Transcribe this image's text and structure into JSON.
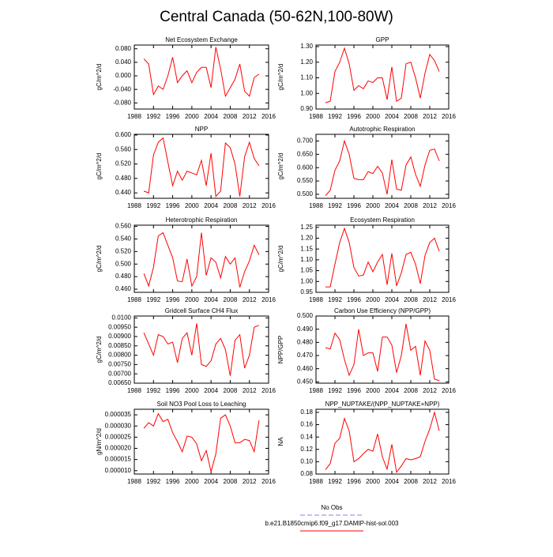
{
  "title": "Central Canada (50-62N,100-80W)",
  "legend": [
    {
      "name": "No Obs",
      "color": "#8080ee",
      "dash": true
    },
    {
      "name": "b.e21.B1850cmip6.f09_g17.DAMIP-hist-sol.003",
      "color": "#ff0000",
      "dash": false
    }
  ],
  "chart_data": [
    {
      "type": "line",
      "title": "Net Ecosystem Exchange",
      "ylabel": "gC/m^2/d",
      "color": "#ff0000",
      "xlim": [
        1988,
        2016
      ],
      "xticks": [
        1988,
        1992,
        1996,
        2000,
        2004,
        2008,
        2012,
        2016
      ],
      "x": [
        1990,
        1991,
        1992,
        1993,
        1994,
        1995,
        1996,
        1997,
        1998,
        1999,
        2000,
        2001,
        2002,
        2003,
        2004,
        2005,
        2006,
        2007,
        2008,
        2009,
        2010,
        2011,
        2012,
        2013,
        2014
      ],
      "values": [
        0.05,
        0.035,
        -0.055,
        -0.03,
        -0.04,
        0.0,
        0.055,
        -0.02,
        0.0,
        0.015,
        -0.02,
        0.01,
        0.025,
        0.025,
        -0.035,
        0.085,
        0.02,
        -0.06,
        -0.035,
        -0.01,
        0.035,
        -0.045,
        -0.06,
        -0.005,
        0.005
      ],
      "ylim": [
        -0.098,
        0.091
      ],
      "yticks": [
        {
          "value": -0.08,
          "label": "-0.080"
        },
        {
          "value": -0.04,
          "label": "-0.040"
        },
        {
          "value": 0,
          "label": "0.000"
        },
        {
          "value": 0.04,
          "label": "0.040"
        },
        {
          "value": 0.08,
          "label": "0.080"
        }
      ]
    },
    {
      "type": "line",
      "title": "GPP",
      "ylabel": "gC/m^2/d",
      "color": "#ff0000",
      "xlim": [
        1988,
        2016
      ],
      "xticks": [
        1988,
        1992,
        1996,
        2000,
        2004,
        2008,
        2012,
        2016
      ],
      "x": [
        1990,
        1991,
        1992,
        1993,
        1994,
        1995,
        1996,
        1997,
        1998,
        1999,
        2000,
        2001,
        2002,
        2003,
        2004,
        2005,
        2006,
        2007,
        2008,
        2009,
        2010,
        2011,
        2012,
        2013,
        2014
      ],
      "values": [
        0.94,
        0.95,
        1.14,
        1.2,
        1.29,
        1.19,
        1.02,
        1.05,
        1.03,
        1.08,
        1.07,
        1.1,
        1.1,
        0.96,
        1.17,
        0.95,
        0.97,
        1.19,
        1.2,
        1.1,
        0.97,
        1.13,
        1.25,
        1.21,
        1.14
      ],
      "ylim": [
        0.9,
        1.31
      ],
      "yticks": [
        {
          "value": 0.9,
          "label": "0.90"
        },
        {
          "value": 1.0,
          "label": "1.00"
        },
        {
          "value": 1.1,
          "label": "1.10"
        },
        {
          "value": 1.2,
          "label": "1.20"
        },
        {
          "value": 1.3,
          "label": "1.30"
        }
      ]
    },
    {
      "type": "line",
      "title": "NPP",
      "ylabel": "gC/m^2/d",
      "color": "#ff0000",
      "xlim": [
        1988,
        2016
      ],
      "xticks": [
        1988,
        1992,
        1996,
        2000,
        2004,
        2008,
        2012,
        2016
      ],
      "x": [
        1990,
        1991,
        1992,
        1993,
        1994,
        1995,
        1996,
        1997,
        1998,
        1999,
        2000,
        2001,
        2002,
        2003,
        2004,
        2005,
        2006,
        2007,
        2008,
        2009,
        2010,
        2011,
        2012,
        2013,
        2014
      ],
      "values": [
        0.445,
        0.44,
        0.545,
        0.58,
        0.592,
        0.525,
        0.46,
        0.5,
        0.475,
        0.5,
        0.495,
        0.49,
        0.53,
        0.46,
        0.55,
        0.43,
        0.445,
        0.578,
        0.565,
        0.52,
        0.43,
        0.54,
        0.58,
        0.535,
        0.515
      ],
      "ylim": [
        0.425,
        0.602
      ],
      "yticks": [
        {
          "value": 0.44,
          "label": "0.440"
        },
        {
          "value": 0.48,
          "label": "0.480"
        },
        {
          "value": 0.52,
          "label": "0.520"
        },
        {
          "value": 0.56,
          "label": "0.560"
        },
        {
          "value": 0.6,
          "label": "0.600"
        }
      ]
    },
    {
      "type": "line",
      "title": "Autotrophic Respiration",
      "ylabel": "gC/m^2/d",
      "color": "#ff0000",
      "xlim": [
        1988,
        2016
      ],
      "xticks": [
        1988,
        1992,
        1996,
        2000,
        2004,
        2008,
        2012,
        2016
      ],
      "x": [
        1990,
        1991,
        1992,
        1993,
        1994,
        1995,
        1996,
        1997,
        1998,
        1999,
        2000,
        2001,
        2002,
        2003,
        2004,
        2005,
        2006,
        2007,
        2008,
        2009,
        2010,
        2011,
        2012,
        2013,
        2014
      ],
      "values": [
        0.495,
        0.515,
        0.59,
        0.625,
        0.7,
        0.65,
        0.56,
        0.555,
        0.555,
        0.585,
        0.578,
        0.605,
        0.58,
        0.5,
        0.63,
        0.52,
        0.515,
        0.61,
        0.64,
        0.575,
        0.53,
        0.61,
        0.665,
        0.67,
        0.625
      ],
      "ylim": [
        0.485,
        0.725
      ],
      "yticks": [
        {
          "value": 0.5,
          "label": "0.500"
        },
        {
          "value": 0.55,
          "label": "0.550"
        },
        {
          "value": 0.6,
          "label": "0.600"
        },
        {
          "value": 0.65,
          "label": "0.650"
        },
        {
          "value": 0.7,
          "label": "0.700"
        }
      ]
    },
    {
      "type": "line",
      "title": "Heterotrophic Respiration",
      "ylabel": "gC/m^2/d",
      "color": "#ff0000",
      "xlim": [
        1988,
        2016
      ],
      "xticks": [
        1988,
        1992,
        1996,
        2000,
        2004,
        2008,
        2012,
        2016
      ],
      "x": [
        1990,
        1991,
        1992,
        1993,
        1994,
        1995,
        1996,
        1997,
        1998,
        1999,
        2000,
        2001,
        2002,
        2003,
        2004,
        2005,
        2006,
        2007,
        2008,
        2009,
        2010,
        2011,
        2012,
        2013,
        2014
      ],
      "values": [
        0.485,
        0.465,
        0.495,
        0.545,
        0.55,
        0.53,
        0.51,
        0.473,
        0.472,
        0.508,
        0.465,
        0.48,
        0.55,
        0.482,
        0.51,
        0.503,
        0.478,
        0.512,
        0.5,
        0.51,
        0.463,
        0.488,
        0.505,
        0.53,
        0.515
      ],
      "ylim": [
        0.455,
        0.562
      ],
      "yticks": [
        {
          "value": 0.46,
          "label": "0.460"
        },
        {
          "value": 0.48,
          "label": "0.480"
        },
        {
          "value": 0.5,
          "label": "0.500"
        },
        {
          "value": 0.52,
          "label": "0.520"
        },
        {
          "value": 0.54,
          "label": "0.540"
        },
        {
          "value": 0.56,
          "label": "0.560"
        }
      ]
    },
    {
      "type": "line",
      "title": "Ecosystem Respiration",
      "ylabel": "gC/m^2/d",
      "color": "#ff0000",
      "xlim": [
        1988,
        2016
      ],
      "xticks": [
        1988,
        1992,
        1996,
        2000,
        2004,
        2008,
        2012,
        2016
      ],
      "x": [
        1990,
        1991,
        1992,
        1993,
        1994,
        1995,
        1996,
        1997,
        1998,
        1999,
        2000,
        2001,
        2002,
        2003,
        2004,
        2005,
        2006,
        2007,
        2008,
        2009,
        2010,
        2011,
        2012,
        2013,
        2014
      ],
      "values": [
        0.975,
        0.975,
        1.08,
        1.18,
        1.245,
        1.18,
        1.065,
        1.025,
        1.03,
        1.09,
        1.045,
        1.09,
        1.125,
        0.985,
        1.13,
        0.98,
        1.04,
        1.125,
        1.135,
        1.08,
        0.99,
        1.12,
        1.18,
        1.2,
        1.14
      ],
      "ylim": [
        0.95,
        1.26
      ],
      "yticks": [
        {
          "value": 0.95,
          "label": "0.95"
        },
        {
          "value": 1.0,
          "label": "1.00"
        },
        {
          "value": 1.05,
          "label": "1.05"
        },
        {
          "value": 1.1,
          "label": "1.10"
        },
        {
          "value": 1.15,
          "label": "1.15"
        },
        {
          "value": 1.2,
          "label": "1.20"
        },
        {
          "value": 1.25,
          "label": "1.25"
        }
      ]
    },
    {
      "type": "line",
      "title": "Gridcell Surface CH4 Flux",
      "ylabel": "gC/m^2/d",
      "color": "#ff0000",
      "xlim": [
        1988,
        2016
      ],
      "xticks": [
        1988,
        1992,
        1996,
        2000,
        2004,
        2008,
        2012,
        2016
      ],
      "x": [
        1990,
        1991,
        1992,
        1993,
        1994,
        1995,
        1996,
        1997,
        1998,
        1999,
        2000,
        2001,
        2002,
        2003,
        2004,
        2005,
        2006,
        2007,
        2008,
        2009,
        2010,
        2011,
        2012,
        2013,
        2014
      ],
      "values": [
        0.0092,
        0.0086,
        0.008,
        0.0091,
        0.009,
        0.0086,
        0.0087,
        0.0076,
        0.0089,
        0.0092,
        0.008,
        0.0097,
        0.0075,
        0.0074,
        0.0077,
        0.0086,
        0.0089,
        0.0083,
        0.0069,
        0.0088,
        0.0091,
        0.0073,
        0.008,
        0.0095,
        0.0096
      ],
      "ylim": [
        0.0065,
        0.0101
      ],
      "yticks": [
        {
          "value": 0.0065,
          "label": "0.00650"
        },
        {
          "value": 0.007,
          "label": "0.00700"
        },
        {
          "value": 0.0075,
          "label": "0.00750"
        },
        {
          "value": 0.008,
          "label": "0.00800"
        },
        {
          "value": 0.0085,
          "label": "0.00850"
        },
        {
          "value": 0.009,
          "label": "0.00900"
        },
        {
          "value": 0.0095,
          "label": "0.00950"
        },
        {
          "value": 0.01,
          "label": "0.0100"
        }
      ]
    },
    {
      "type": "line",
      "title": "Carbon Use Efficiency (NPP/GPP)",
      "ylabel": "NPP/GPP",
      "color": "#ff0000",
      "xlim": [
        1988,
        2016
      ],
      "xticks": [
        1988,
        1992,
        1996,
        2000,
        2004,
        2008,
        2012,
        2016
      ],
      "x": [
        1990,
        1991,
        1992,
        1993,
        1994,
        1995,
        1996,
        1997,
        1998,
        1999,
        2000,
        2001,
        2002,
        2003,
        2004,
        2005,
        2006,
        2007,
        2008,
        2009,
        2010,
        2011,
        2012,
        2013,
        2014
      ],
      "values": [
        0.476,
        0.475,
        0.487,
        0.482,
        0.467,
        0.455,
        0.463,
        0.49,
        0.47,
        0.472,
        0.472,
        0.458,
        0.484,
        0.484,
        0.478,
        0.457,
        0.47,
        0.494,
        0.474,
        0.477,
        0.455,
        0.481,
        0.474,
        0.452,
        0.451
      ],
      "ylim": [
        0.449,
        0.5
      ],
      "yticks": [
        {
          "value": 0.45,
          "label": "0.450"
        },
        {
          "value": 0.46,
          "label": "0.460"
        },
        {
          "value": 0.47,
          "label": "0.470"
        },
        {
          "value": 0.48,
          "label": "0.480"
        },
        {
          "value": 0.49,
          "label": "0.490"
        },
        {
          "value": 0.5,
          "label": "0.500"
        }
      ]
    },
    {
      "type": "line",
      "title": "Soil NO3 Pool Loss to Leaching",
      "ylabel": "gN/m^2/d",
      "color": "#ff0000",
      "xlim": [
        1988,
        2016
      ],
      "xticks": [
        1988,
        1992,
        1996,
        2000,
        2004,
        2008,
        2012,
        2016
      ],
      "x": [
        1990,
        1991,
        1992,
        1993,
        1994,
        1995,
        1996,
        1997,
        1998,
        1999,
        2000,
        2001,
        2002,
        2003,
        2004,
        2005,
        2006,
        2007,
        2008,
        2009,
        2010,
        2011,
        2012,
        2013,
        2014
      ],
      "values": [
        2.9e-05,
        3.15e-05,
        3e-05,
        3.55e-05,
        3.2e-05,
        3.3e-05,
        2.7e-05,
        2.3e-05,
        1.85e-05,
        2.55e-05,
        2.5e-05,
        2.2e-05,
        1.45e-05,
        1.9e-05,
        9.5e-06,
        1.75e-05,
        3.35e-05,
        3.5e-05,
        3e-05,
        2.25e-05,
        2.25e-05,
        2.4e-05,
        2.35e-05,
        1.85e-05,
        3.25e-05
      ],
      "ylim": [
        8.5e-06,
        3.75e-05
      ],
      "yticks": [
        {
          "value": 1e-05,
          "label": "0.000010"
        },
        {
          "value": 1.5e-05,
          "label": "0.000015"
        },
        {
          "value": 2e-05,
          "label": "0.000020"
        },
        {
          "value": 2.5e-05,
          "label": "0.000025"
        },
        {
          "value": 3e-05,
          "label": "0.000030"
        },
        {
          "value": 3.5e-05,
          "label": "0.000035"
        }
      ]
    },
    {
      "type": "line",
      "title": "NPP_NUPTAKE/(NPP_NUPTAKE+NPP)",
      "ylabel": "NA",
      "color": "#ff0000",
      "xlim": [
        1988,
        2016
      ],
      "xticks": [
        1988,
        1992,
        1996,
        2000,
        2004,
        2008,
        2012,
        2016
      ],
      "x": [
        1990,
        1991,
        1992,
        1993,
        1994,
        1995,
        1996,
        1997,
        1998,
        1999,
        2000,
        2001,
        2002,
        2003,
        2004,
        2005,
        2006,
        2007,
        2008,
        2009,
        2010,
        2011,
        2012,
        2013,
        2014
      ],
      "values": [
        0.087,
        0.097,
        0.13,
        0.138,
        0.17,
        0.15,
        0.1,
        0.105,
        0.113,
        0.12,
        0.117,
        0.145,
        0.108,
        0.088,
        0.128,
        0.083,
        0.093,
        0.105,
        0.103,
        0.105,
        0.108,
        0.133,
        0.153,
        0.18,
        0.15
      ],
      "ylim": [
        0.08,
        0.185
      ],
      "yticks": [
        {
          "value": 0.08,
          "label": "0.08"
        },
        {
          "value": 0.1,
          "label": "0.10"
        },
        {
          "value": 0.12,
          "label": "0.12"
        },
        {
          "value": 0.14,
          "label": "0.14"
        },
        {
          "value": 0.16,
          "label": "0.16"
        },
        {
          "value": 0.18,
          "label": "0.18"
        }
      ]
    }
  ]
}
